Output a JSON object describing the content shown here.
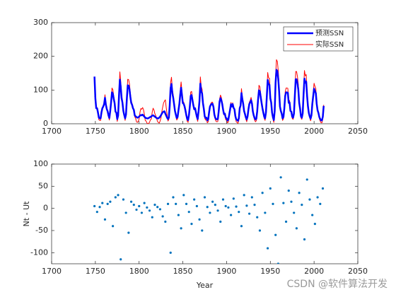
{
  "chart_data": [
    {
      "type": "line",
      "x": [
        1749,
        1750,
        1751,
        1752,
        1753,
        1754,
        1755,
        1756,
        1757,
        1758,
        1759,
        1760,
        1761,
        1762,
        1763,
        1764,
        1765,
        1766,
        1767,
        1768,
        1769,
        1770,
        1771,
        1772,
        1773,
        1774,
        1775,
        1776,
        1777,
        1778,
        1779,
        1780,
        1781,
        1782,
        1783,
        1784,
        1785,
        1786,
        1787,
        1788,
        1789,
        1790,
        1791,
        1792,
        1793,
        1794,
        1795,
        1796,
        1797,
        1798,
        1799,
        1800,
        1801,
        1802,
        1803,
        1804,
        1805,
        1806,
        1807,
        1808,
        1809,
        1810,
        1811,
        1812,
        1813,
        1814,
        1815,
        1816,
        1817,
        1818,
        1819,
        1820,
        1821,
        1822,
        1823,
        1824,
        1825,
        1826,
        1827,
        1828,
        1829,
        1830,
        1831,
        1832,
        1833,
        1834,
        1835,
        1836,
        1837,
        1838,
        1839,
        1840,
        1841,
        1842,
        1843,
        1844,
        1845,
        1846,
        1847,
        1848,
        1849,
        1850,
        1851,
        1852,
        1853,
        1854,
        1855,
        1856,
        1857,
        1858,
        1859,
        1860,
        1861,
        1862,
        1863,
        1864,
        1865,
        1866,
        1867,
        1868,
        1869,
        1870,
        1871,
        1872,
        1873,
        1874,
        1875,
        1876,
        1877,
        1878,
        1879,
        1880,
        1881,
        1882,
        1883,
        1884,
        1885,
        1886,
        1887,
        1888,
        1889,
        1890,
        1891,
        1892,
        1893,
        1894,
        1895,
        1896,
        1897,
        1898,
        1899,
        1900,
        1901,
        1902,
        1903,
        1904,
        1905,
        1906,
        1907,
        1908,
        1909,
        1910,
        1911,
        1912,
        1913,
        1914,
        1915,
        1916,
        1917,
        1918,
        1919,
        1920,
        1921,
        1922,
        1923,
        1924,
        1925,
        1926,
        1927,
        1928,
        1929,
        1930,
        1931,
        1932,
        1933,
        1934,
        1935,
        1936,
        1937,
        1938,
        1939,
        1940,
        1941,
        1942,
        1943,
        1944,
        1945,
        1946,
        1947,
        1948,
        1949,
        1950,
        1951,
        1952,
        1953,
        1954,
        1955,
        1956,
        1957,
        1958,
        1959,
        1960,
        1961,
        1962,
        1963,
        1964,
        1965,
        1966,
        1967,
        1968,
        1969,
        1970,
        1971,
        1972,
        1973,
        1974,
        1975,
        1976,
        1977,
        1978,
        1979,
        1980,
        1981,
        1982,
        1983,
        1984,
        1985,
        1986,
        1987,
        1988,
        1989,
        1990,
        1991,
        1992,
        1993,
        1994,
        1995,
        1996,
        1997,
        1998,
        1999,
        2000,
        2001,
        2002,
        2003,
        2004,
        2005,
        2006,
        2007,
        2008,
        2009,
        2010,
        2011
      ],
      "series": [
        {
          "name": "预测SSN",
          "color": "#0000ff",
          "width": 2.5,
          "values": [
            140,
            75,
            46,
            46,
            33,
            18,
            16,
            16,
            34,
            46,
            51,
            58,
            77,
            57,
            44,
            37,
            25,
            17,
            38,
            64,
            93,
            89,
            74,
            61,
            36,
            33,
            14,
            24,
            82,
            131,
            109,
            76,
            62,
            38,
            26,
            16,
            27,
            74,
            114,
            113,
            102,
            80,
            62,
            56,
            46,
            41,
            25,
            22,
            20,
            18,
            19,
            21,
            24,
            26,
            25,
            27,
            24,
            21,
            18,
            17,
            16,
            16,
            17,
            19,
            20,
            22,
            24,
            25,
            23,
            21,
            19,
            17,
            16,
            16,
            18,
            21,
            25,
            30,
            34,
            36,
            37,
            30,
            24,
            18,
            14,
            18,
            54,
            106,
            118,
            90,
            77,
            58,
            38,
            27,
            17,
            20,
            40,
            58,
            86,
            107,
            85,
            61,
            59,
            51,
            39,
            25,
            14,
            11,
            26,
            52,
            83,
            85,
            70,
            55,
            43,
            46,
            33,
            21,
            14,
            38,
            67,
            119,
            97,
            90,
            61,
            44,
            22,
            17,
            18,
            10,
            13,
            34,
            51,
            56,
            59,
            59,
            50,
            28,
            18,
            14,
            13,
            14,
            37,
            66,
            76,
            70,
            59,
            42,
            29,
            30,
            18,
            16,
            10,
            12,
            27,
            42,
            58,
            51,
            58,
            47,
            43,
            23,
            13,
            11,
            9,
            16,
            46,
            54,
            91,
            73,
            59,
            38,
            29,
            19,
            13,
            22,
            43,
            59,
            63,
            70,
            60,
            37,
            25,
            17,
            13,
            15,
            37,
            72,
            99,
            96,
            79,
            62,
            46,
            33,
            21,
            16,
            34,
            82,
            130,
            117,
            116,
            75,
            63,
            33,
            19,
            11,
            38,
            122,
            160,
            156,
            135,
            98,
            51,
            38,
            30,
            16,
            20,
            46,
            83,
            93,
            93,
            92,
            62,
            63,
            38,
            36,
            21,
            18,
            30,
            82,
            132,
            132,
            120,
            101,
            62,
            45,
            22,
            18,
            31,
            88,
            134,
            122,
            125,
            83,
            52,
            32,
            22,
            15,
            25,
            59,
            82,
            104,
            97,
            91,
            59,
            40,
            32,
            20,
            14,
            10,
            10,
            21,
            53
          ]
        },
        {
          "name": "实际SSN",
          "color": "#ff0000",
          "width": 1,
          "values": [
            80,
            83,
            48,
            48,
            31,
            12,
            10,
            10,
            32,
            48,
            54,
            63,
            86,
            61,
            45,
            36,
            21,
            11,
            38,
            70,
            106,
            101,
            82,
            66,
            35,
            31,
            7,
            20,
            92,
            154,
            126,
            85,
            68,
            38,
            23,
            10,
            24,
            83,
            132,
            131,
            118,
            90,
            67,
            60,
            47,
            41,
            21,
            16,
            6,
            4,
            7,
            14,
            34,
            45,
            43,
            48,
            42,
            28,
            10,
            8,
            2,
            0,
            1,
            5,
            12,
            14,
            35,
            46,
            41,
            30,
            24,
            16,
            7,
            4,
            2,
            8,
            17,
            36,
            50,
            62,
            67,
            71,
            48,
            28,
            8,
            13,
            57,
            122,
            138,
            103,
            86,
            63,
            37,
            24,
            11,
            15,
            40,
            62,
            98,
            124,
            96,
            66,
            64,
            54,
            39,
            21,
            7,
            4,
            23,
            55,
            94,
            96,
            77,
            59,
            44,
            47,
            31,
            16,
            7,
            37,
            74,
            139,
            111,
            102,
            66,
            45,
            17,
            11,
            12,
            3,
            6,
            32,
            54,
            60,
            64,
            64,
            52,
            25,
            13,
            7,
            6,
            7,
            36,
            73,
            85,
            78,
            64,
            42,
            26,
            27,
            12,
            10,
            3,
            5,
            24,
            42,
            63,
            54,
            62,
            49,
            44,
            19,
            6,
            4,
            1,
            10,
            47,
            57,
            104,
            81,
            64,
            38,
            26,
            14,
            6,
            17,
            44,
            64,
            69,
            78,
            65,
            36,
            21,
            11,
            6,
            9,
            36,
            80,
            114,
            110,
            89,
            68,
            48,
            31,
            16,
            10,
            33,
            93,
            152,
            136,
            135,
            84,
            69,
            31,
            14,
            4,
            38,
            142,
            190,
            185,
            159,
            112,
            54,
            38,
            28,
            10,
            15,
            47,
            94,
            106,
            106,
            105,
            67,
            69,
            38,
            35,
            16,
            13,
            28,
            93,
            155,
            155,
            140,
            116,
            67,
            46,
            18,
            13,
            29,
            100,
            158,
            142,
            146,
            94,
            55,
            30,
            18,
            9,
            21,
            64,
            93,
            120,
            111,
            104,
            64,
            40,
            30,
            15,
            8,
            3,
            3,
            16,
            56
          ]
        }
      ],
      "xlim": [
        1700,
        2050
      ],
      "xticks": [
        1700,
        1750,
        1800,
        1850,
        1900,
        1950,
        2000,
        2050
      ],
      "ylim": [
        0,
        300
      ],
      "yticks": [
        0,
        100,
        200,
        300
      ],
      "legend": "upper right"
    },
    {
      "type": "scatter",
      "x": [
        1749,
        1752,
        1755,
        1758,
        1761,
        1764,
        1767,
        1770,
        1773,
        1776,
        1779,
        1782,
        1785,
        1788,
        1791,
        1794,
        1797,
        1800,
        1803,
        1806,
        1809,
        1812,
        1815,
        1818,
        1821,
        1824,
        1827,
        1830,
        1833,
        1836,
        1839,
        1842,
        1845,
        1848,
        1851,
        1854,
        1857,
        1860,
        1863,
        1866,
        1869,
        1872,
        1875,
        1878,
        1881,
        1884,
        1887,
        1890,
        1893,
        1896,
        1899,
        1902,
        1905,
        1908,
        1911,
        1914,
        1917,
        1920,
        1923,
        1926,
        1929,
        1932,
        1935,
        1938,
        1941,
        1944,
        1947,
        1950,
        1953,
        1956,
        1959,
        1962,
        1965,
        1968,
        1971,
        1974,
        1977,
        1980,
        1983,
        1986,
        1989,
        1992,
        1995,
        1998,
        2001,
        2004,
        2007,
        2010
      ],
      "values": [
        5,
        -8,
        3,
        12,
        -25,
        10,
        15,
        -40,
        25,
        30,
        -115,
        20,
        -10,
        -55,
        15,
        8,
        -3,
        5,
        -10,
        12,
        2,
        -5,
        -20,
        8,
        3,
        -2,
        -18,
        -30,
        10,
        -100,
        25,
        10,
        -15,
        -45,
        30,
        10,
        -8,
        -35,
        20,
        5,
        -25,
        -50,
        25,
        3,
        -10,
        15,
        8,
        -5,
        -30,
        20,
        5,
        2,
        -15,
        22,
        4,
        -8,
        -40,
        30,
        6,
        -12,
        25,
        8,
        -20,
        -50,
        35,
        -10,
        -90,
        45,
        10,
        -60,
        -125,
        70,
        12,
        -30,
        40,
        15,
        -10,
        -45,
        35,
        8,
        -70,
        65,
        20,
        -15,
        -35,
        25,
        10,
        45
      ],
      "color": "#0072bd",
      "xlabel": "Year",
      "ylabel": "Nt - Ut",
      "xlim": [
        1700,
        2050
      ],
      "xticks": [
        1700,
        1750,
        1800,
        1850,
        1900,
        1950,
        2000,
        2050
      ],
      "ylim": [
        -125,
        100
      ],
      "yticks": [
        -100,
        -50,
        0,
        50,
        100
      ]
    }
  ],
  "watermark": "CSDN @软件算法开发"
}
